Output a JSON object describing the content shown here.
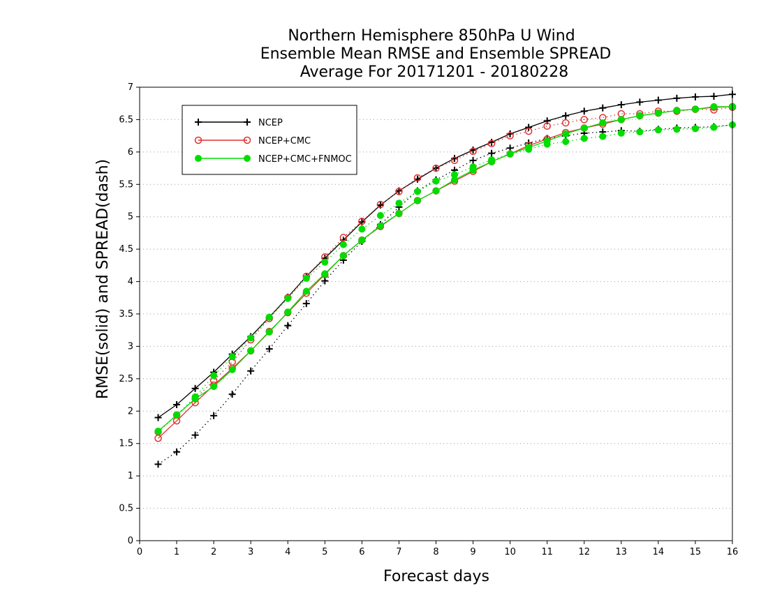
{
  "chart_data": {
    "type": "line",
    "title": [
      "Northern Hemisphere 850hPa U Wind",
      "Ensemble Mean RMSE and Ensemble SPREAD",
      "Average For 20171201 - 20180228"
    ],
    "xlabel": "Forecast days",
    "ylabel": "RMSE(solid) and SPREAD(dash)",
    "xlim": [
      0,
      16
    ],
    "ylim": [
      0,
      7
    ],
    "xticks": [
      "0",
      "1",
      "2",
      "3",
      "4",
      "5",
      "6",
      "7",
      "8",
      "9",
      "10",
      "11",
      "12",
      "13",
      "14",
      "15",
      "16"
    ],
    "yticks": [
      "0",
      "0.5",
      "1",
      "1.5",
      "2",
      "2.5",
      "3",
      "3.5",
      "4",
      "4.5",
      "5",
      "5.5",
      "6",
      "6.5",
      "7"
    ],
    "grid": "horizontal dotted",
    "legend_position": "top-left",
    "x": [
      0.5,
      1,
      1.5,
      2,
      2.5,
      3,
      3.5,
      4,
      4.5,
      5,
      5.5,
      6,
      6.5,
      7,
      7.5,
      8,
      8.5,
      9,
      9.5,
      10,
      10.5,
      11,
      11.5,
      12,
      12.5,
      13,
      13.5,
      14,
      14.5,
      15,
      15.5,
      16
    ],
    "series": [
      {
        "name": "NCEP",
        "color": "#000000",
        "marker": "plus",
        "rmse": [
          1.9,
          2.1,
          2.35,
          2.6,
          2.88,
          3.15,
          3.45,
          3.76,
          4.08,
          4.36,
          4.64,
          4.92,
          5.18,
          5.4,
          5.58,
          5.75,
          5.9,
          6.03,
          6.15,
          6.28,
          6.38,
          6.48,
          6.56,
          6.63,
          6.68,
          6.73,
          6.77,
          6.8,
          6.83,
          6.85,
          6.86,
          6.89
        ],
        "spread": [
          1.18,
          1.37,
          1.63,
          1.93,
          2.26,
          2.62,
          2.96,
          3.32,
          3.66,
          4.01,
          4.33,
          4.62,
          4.88,
          5.15,
          5.4,
          5.57,
          5.72,
          5.87,
          5.98,
          6.06,
          6.14,
          6.21,
          6.25,
          6.29,
          6.31,
          6.33,
          6.32,
          6.35,
          6.37,
          6.38,
          6.39,
          6.42
        ]
      },
      {
        "name": "NCEP+CMC",
        "color": "#e03030",
        "marker": "open-circle",
        "rmse": [
          1.58,
          1.85,
          2.13,
          2.4,
          2.66,
          2.93,
          3.23,
          3.52,
          3.82,
          4.11,
          4.4,
          4.64,
          4.85,
          5.05,
          5.25,
          5.4,
          5.55,
          5.7,
          5.85,
          5.97,
          6.1,
          6.2,
          6.3,
          6.37,
          6.43,
          6.5,
          6.56,
          6.6,
          6.64,
          6.66,
          6.69,
          6.7
        ],
        "spread": [
          1.68,
          1.94,
          2.19,
          2.47,
          2.76,
          3.1,
          3.43,
          3.75,
          4.08,
          4.38,
          4.68,
          4.93,
          5.19,
          5.39,
          5.6,
          5.75,
          5.87,
          6.01,
          6.13,
          6.25,
          6.32,
          6.4,
          6.45,
          6.5,
          6.53,
          6.59,
          6.59,
          6.63,
          6.63,
          6.66,
          6.65,
          6.69
        ]
      },
      {
        "name": "NCEP+CMC+FNMOC",
        "color": "#00dd00",
        "marker": "filled-circle",
        "rmse": [
          1.69,
          1.94,
          2.19,
          2.38,
          2.64,
          2.93,
          3.22,
          3.53,
          3.85,
          4.12,
          4.4,
          4.64,
          4.86,
          5.05,
          5.25,
          5.4,
          5.57,
          5.72,
          5.85,
          5.97,
          6.07,
          6.17,
          6.28,
          6.37,
          6.45,
          6.5,
          6.56,
          6.6,
          6.64,
          6.66,
          6.7,
          6.7
        ],
        "spread": [
          1.69,
          1.94,
          2.22,
          2.55,
          2.84,
          3.13,
          3.45,
          3.74,
          4.05,
          4.3,
          4.57,
          4.81,
          5.02,
          5.21,
          5.39,
          5.55,
          5.65,
          5.77,
          5.88,
          5.97,
          6.04,
          6.12,
          6.16,
          6.21,
          6.24,
          6.29,
          6.31,
          6.34,
          6.35,
          6.36,
          6.38,
          6.42
        ]
      }
    ]
  }
}
